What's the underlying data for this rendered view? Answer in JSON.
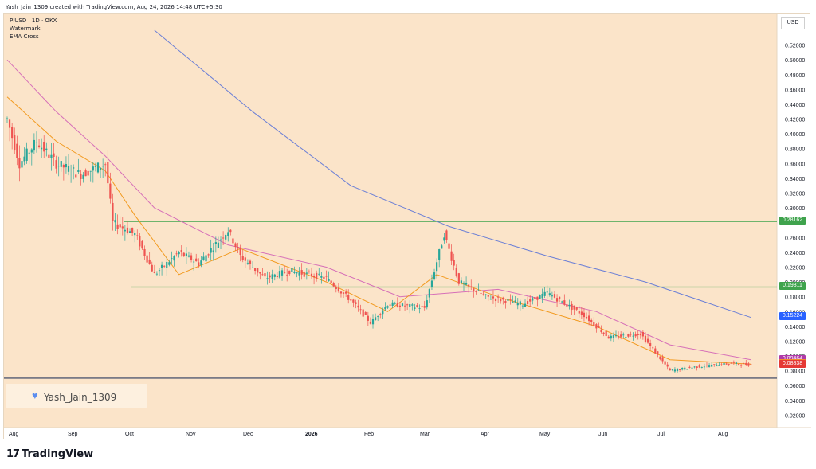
{
  "header": {
    "text": "Yash_Jain_1309 created with TradingView.com, Aug 24, 2026 14:48 UTC+5:30"
  },
  "info": {
    "symbol_line": "PIUSD · 1D · OKX",
    "watermark_label": "Watermark",
    "indicator_label": "EMA Cross"
  },
  "watermark": {
    "text": "Yash_Jain_1309",
    "icon": "heart-icon",
    "heart_color": "#5b8def"
  },
  "currency": "USD",
  "logo": {
    "text": "TradingView",
    "mark": "17"
  },
  "price_tags": [
    {
      "id": "resistance",
      "label": "0.28162",
      "value": 0.28162,
      "color": "#3fa34d"
    },
    {
      "id": "support",
      "label": "0.19311",
      "value": 0.19311,
      "color": "#3fa34d"
    },
    {
      "id": "ema-long",
      "label": "0.15224",
      "value": 0.15224,
      "color": "#2962ff"
    },
    {
      "id": "ema-mid",
      "label": "0.09464",
      "value": 0.09464,
      "color": "#b03aa8"
    },
    {
      "id": "ema-short",
      "label": "0.08920",
      "value": 0.0892,
      "color": "#f28c28"
    },
    {
      "id": "last-price",
      "label": "0.08838",
      "value": 0.08838,
      "color": "#e53935"
    }
  ],
  "chart_data": {
    "type": "candlestick",
    "title": "",
    "xlabel": "",
    "ylabel": "",
    "ylim": [
      0.0,
      0.54
    ],
    "y_ticks": [
      "0.52000",
      "0.50000",
      "0.48000",
      "0.46000",
      "0.44000",
      "0.42000",
      "0.40000",
      "0.38000",
      "0.36000",
      "0.34000",
      "0.32000",
      "0.30000",
      "0.28000",
      "0.26000",
      "0.24000",
      "0.22000",
      "0.20000",
      "0.18000",
      "0.16000",
      "0.14000",
      "0.12000",
      "0.10000",
      "0.08000",
      "0.06000",
      "0.04000",
      "0.02000"
    ],
    "x_ticks": [
      "Aug",
      "Sep",
      "Oct",
      "Nov",
      "Dec",
      "2026",
      "Feb",
      "Mar",
      "Apr",
      "May",
      "Jun",
      "Jul",
      "Aug"
    ],
    "horizontal_lines": [
      0.28162,
      0.19311,
      0.07
    ],
    "close_series": [
      {
        "t": 0,
        "v": 0.42
      },
      {
        "t": 5,
        "v": 0.36
      },
      {
        "t": 12,
        "v": 0.39
      },
      {
        "t": 20,
        "v": 0.36
      },
      {
        "t": 30,
        "v": 0.345
      },
      {
        "t": 40,
        "v": 0.36
      },
      {
        "t": 43,
        "v": 0.28
      },
      {
        "t": 52,
        "v": 0.265
      },
      {
        "t": 60,
        "v": 0.21
      },
      {
        "t": 70,
        "v": 0.24
      },
      {
        "t": 78,
        "v": 0.225
      },
      {
        "t": 90,
        "v": 0.27
      },
      {
        "t": 95,
        "v": 0.235
      },
      {
        "t": 105,
        "v": 0.205
      },
      {
        "t": 115,
        "v": 0.215
      },
      {
        "t": 130,
        "v": 0.205
      },
      {
        "t": 140,
        "v": 0.175
      },
      {
        "t": 148,
        "v": 0.145
      },
      {
        "t": 155,
        "v": 0.17
      },
      {
        "t": 170,
        "v": 0.165
      },
      {
        "t": 178,
        "v": 0.265
      },
      {
        "t": 184,
        "v": 0.2
      },
      {
        "t": 195,
        "v": 0.18
      },
      {
        "t": 210,
        "v": 0.17
      },
      {
        "t": 220,
        "v": 0.185
      },
      {
        "t": 235,
        "v": 0.155
      },
      {
        "t": 245,
        "v": 0.125
      },
      {
        "t": 258,
        "v": 0.13
      },
      {
        "t": 270,
        "v": 0.08
      },
      {
        "t": 280,
        "v": 0.085
      },
      {
        "t": 295,
        "v": 0.09
      },
      {
        "t": 303,
        "v": 0.088
      }
    ],
    "ema_long": [
      {
        "t": 60,
        "v": 0.54
      },
      {
        "t": 100,
        "v": 0.43
      },
      {
        "t": 140,
        "v": 0.33
      },
      {
        "t": 180,
        "v": 0.275
      },
      {
        "t": 220,
        "v": 0.235
      },
      {
        "t": 260,
        "v": 0.2
      },
      {
        "t": 303,
        "v": 0.152
      }
    ],
    "ema_mid": [
      {
        "t": 0,
        "v": 0.5
      },
      {
        "t": 20,
        "v": 0.43
      },
      {
        "t": 40,
        "v": 0.37
      },
      {
        "t": 60,
        "v": 0.3
      },
      {
        "t": 90,
        "v": 0.25
      },
      {
        "t": 130,
        "v": 0.22
      },
      {
        "t": 160,
        "v": 0.18
      },
      {
        "t": 200,
        "v": 0.19
      },
      {
        "t": 240,
        "v": 0.16
      },
      {
        "t": 270,
        "v": 0.115
      },
      {
        "t": 303,
        "v": 0.095
      }
    ],
    "ema_short": [
      {
        "t": 0,
        "v": 0.45
      },
      {
        "t": 20,
        "v": 0.39
      },
      {
        "t": 40,
        "v": 0.35
      },
      {
        "t": 52,
        "v": 0.29
      },
      {
        "t": 70,
        "v": 0.21
      },
      {
        "t": 95,
        "v": 0.245
      },
      {
        "t": 130,
        "v": 0.2
      },
      {
        "t": 155,
        "v": 0.16
      },
      {
        "t": 175,
        "v": 0.21
      },
      {
        "t": 200,
        "v": 0.18
      },
      {
        "t": 240,
        "v": 0.14
      },
      {
        "t": 270,
        "v": 0.095
      },
      {
        "t": 303,
        "v": 0.089
      }
    ],
    "ema_colors": {
      "long": "#6b7fd6",
      "mid": "#d66fb8",
      "short": "#f29a1f"
    },
    "candle_colors": {
      "up": "#26a69a",
      "down": "#ef5350"
    },
    "grid": false,
    "legend": "top-left"
  }
}
